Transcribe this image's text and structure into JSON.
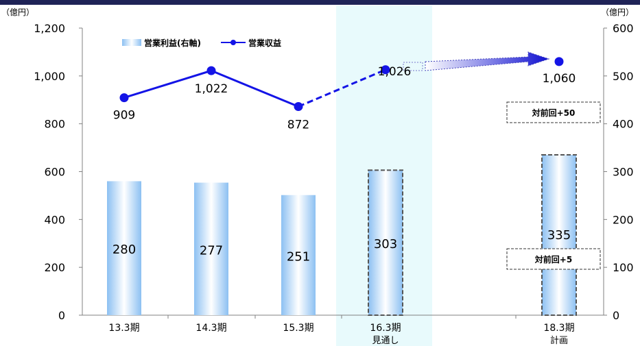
{
  "units": {
    "left": "（億円）",
    "right": "（億円）"
  },
  "legend": {
    "bar": "営業利益(右軸)",
    "line": "営業収益"
  },
  "annotations": {
    "revenue_delta": "対前回+50",
    "profit_delta": "対前回+5"
  },
  "colors": {
    "line": "#1414e6",
    "bar_edge": "#8cc0f2",
    "bar_center": "#ffffff",
    "highlight": "#e8fafc",
    "top_bar": "#1f2357"
  },
  "chart_data": {
    "type": "bar+line",
    "categories": [
      "13.3期",
      "14.3期",
      "15.3期",
      "16.3期",
      "18.3期"
    ],
    "category_sublabels": [
      "",
      "",
      "",
      "見通し",
      "計画"
    ],
    "series": [
      {
        "name": "営業利益(右軸)",
        "type": "bar",
        "axis": "right",
        "values": [
          280,
          277,
          251,
          303,
          335
        ]
      },
      {
        "name": "営業収益",
        "type": "line",
        "axis": "left",
        "values": [
          909,
          1022,
          872,
          1026,
          1060
        ]
      }
    ],
    "left_axis": {
      "min": 0,
      "max": 1200,
      "ticks": [
        "0",
        "200",
        "400",
        "600",
        "800",
        "1,000",
        "1,200"
      ]
    },
    "right_axis": {
      "min": 0,
      "max": 600,
      "ticks": [
        "0",
        "100",
        "200",
        "300",
        "400",
        "500",
        "600"
      ]
    },
    "line_labels": [
      "909",
      "1,022",
      "872",
      "1,026",
      "1,060"
    ],
    "bar_labels": [
      "280",
      "277",
      "251",
      "303",
      "335"
    ],
    "forecast_categories": [
      "16.3期",
      "18.3期"
    ],
    "legend_position": "top-left"
  }
}
